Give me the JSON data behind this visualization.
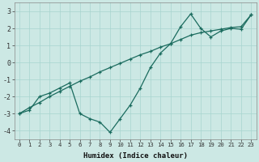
{
  "xlabel": "Humidex (Indice chaleur)",
  "bg_color": "#cce8e4",
  "grid_color": "#a8d4cf",
  "line_color": "#1a6b5e",
  "y_jagged": [
    -3.0,
    -2.8,
    -2.0,
    -1.8,
    -1.5,
    -1.2,
    -3.0,
    -3.3,
    -3.5,
    -4.1,
    -3.3,
    -2.5,
    -1.5,
    -0.3,
    0.55,
    1.1,
    2.1,
    2.85,
    2.0,
    1.5,
    1.85,
    2.0,
    1.95,
    2.8
  ],
  "y_smooth": [
    -3.0,
    -2.65,
    -2.35,
    -2.0,
    -1.7,
    -1.4,
    -1.1,
    -0.85,
    -0.55,
    -0.3,
    -0.05,
    0.2,
    0.45,
    0.65,
    0.9,
    1.1,
    1.35,
    1.6,
    1.75,
    1.85,
    1.95,
    2.05,
    2.1,
    2.8
  ],
  "ylim": [
    -4.5,
    3.5
  ],
  "yticks": [
    -4,
    -3,
    -2,
    -1,
    0,
    1,
    2,
    3
  ],
  "xticks": [
    0,
    1,
    2,
    3,
    4,
    5,
    6,
    7,
    8,
    9,
    10,
    11,
    12,
    13,
    14,
    15,
    16,
    17,
    18,
    19,
    20,
    21,
    22,
    23
  ]
}
